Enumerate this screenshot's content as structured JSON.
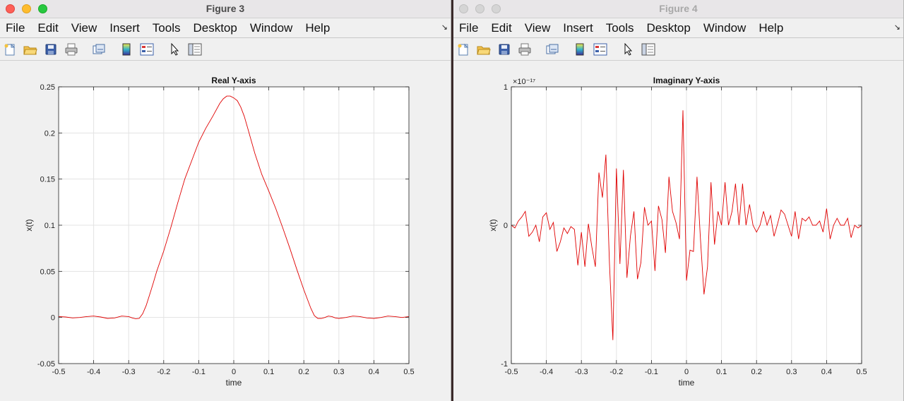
{
  "menu": [
    "File",
    "Edit",
    "View",
    "Insert",
    "Tools",
    "Desktop",
    "Window",
    "Help"
  ],
  "toolbar_icons": [
    "new-figure-icon",
    "open-file-icon",
    "save-icon",
    "print-icon",
    "link-axes-icon",
    "colorbar-icon",
    "legend-icon",
    "pointer-icon",
    "property-inspector-icon"
  ],
  "colors": {
    "line": "#e00000",
    "grid": "#e3e3e3",
    "axes_bg": "#ffffff",
    "window_bg": "#f0f0f0"
  },
  "windows": [
    {
      "title": "Figure 3",
      "active": true,
      "chart_data": {
        "type": "line",
        "title": "Real Y-axis",
        "xlabel": "time",
        "ylabel": "x(t)",
        "xlim": [
          -0.5,
          0.5
        ],
        "ylim": [
          -0.05,
          0.25
        ],
        "xticks": [
          "-0.5",
          "-0.4",
          "-0.3",
          "-0.2",
          "-0.1",
          "0",
          "0.1",
          "0.2",
          "0.3",
          "0.4",
          "0.5"
        ],
        "yticks": [
          "-0.05",
          "0",
          "0.05",
          "0.1",
          "0.15",
          "0.2",
          "0.25"
        ],
        "exponent": "",
        "grid": true,
        "series": [
          {
            "x": [
              -0.5,
              -0.48,
              -0.46,
              -0.44,
              -0.42,
              -0.4,
              -0.38,
              -0.36,
              -0.34,
              -0.32,
              -0.3,
              -0.29,
              -0.28,
              -0.27,
              -0.26,
              -0.25,
              -0.24,
              -0.23,
              -0.22,
              -0.2,
              -0.18,
              -0.16,
              -0.14,
              -0.12,
              -0.1,
              -0.08,
              -0.06,
              -0.04,
              -0.03,
              -0.02,
              -0.01,
              0,
              0.01,
              0.02,
              0.03,
              0.04,
              0.06,
              0.08,
              0.1,
              0.12,
              0.14,
              0.16,
              0.18,
              0.2,
              0.22,
              0.23,
              0.24,
              0.25,
              0.26,
              0.27,
              0.28,
              0.29,
              0.3,
              0.32,
              0.34,
              0.36,
              0.38,
              0.4,
              0.42,
              0.44,
              0.46,
              0.48,
              0.5
            ],
            "y": [
              0.001,
              0.0005,
              -0.0005,
              0,
              0.001,
              0.0015,
              0.0005,
              -0.001,
              -0.0005,
              0.0015,
              0.001,
              -0.0005,
              -0.0015,
              -0.001,
              0.004,
              0.013,
              0.025,
              0.037,
              0.05,
              0.072,
              0.097,
              0.124,
              0.15,
              0.17,
              0.19,
              0.205,
              0.218,
              0.232,
              0.237,
              0.24,
              0.24,
              0.238,
              0.235,
              0.228,
              0.218,
              0.205,
              0.178,
              0.155,
              0.137,
              0.118,
              0.097,
              0.075,
              0.052,
              0.03,
              0.01,
              0.002,
              -0.001,
              -0.001,
              0,
              0.0015,
              0.001,
              -0.0005,
              -0.001,
              0,
              0.0015,
              0.001,
              -0.0005,
              -0.001,
              0,
              0.0015,
              0.001,
              0,
              0.001
            ]
          }
        ]
      }
    },
    {
      "title": "Figure 4",
      "active": false,
      "chart_data": {
        "type": "line",
        "title": "Imaginary Y-axis",
        "xlabel": "time",
        "ylabel": "x(t)",
        "xlim": [
          -0.5,
          0.5
        ],
        "ylim": [
          -1,
          1
        ],
        "xticks": [
          "-0.5",
          "-0.4",
          "-0.3",
          "-0.2",
          "-0.1",
          "0",
          "0.1",
          "0.2",
          "0.3",
          "0.4",
          "0.5"
        ],
        "yticks": [
          "-1",
          "0",
          "1"
        ],
        "exponent": "×10⁻¹⁷",
        "grid": true,
        "series": [
          {
            "x": [
              -0.5,
              -0.49,
              -0.48,
              -0.47,
              -0.46,
              -0.45,
              -0.44,
              -0.43,
              -0.42,
              -0.41,
              -0.4,
              -0.39,
              -0.38,
              -0.37,
              -0.36,
              -0.35,
              -0.34,
              -0.33,
              -0.32,
              -0.31,
              -0.3,
              -0.29,
              -0.28,
              -0.27,
              -0.26,
              -0.25,
              -0.24,
              -0.23,
              -0.22,
              -0.21,
              -0.2,
              -0.19,
              -0.18,
              -0.17,
              -0.16,
              -0.15,
              -0.14,
              -0.13,
              -0.12,
              -0.11,
              -0.1,
              -0.09,
              -0.08,
              -0.07,
              -0.06,
              -0.05,
              -0.04,
              -0.03,
              -0.02,
              -0.01,
              0,
              0.01,
              0.02,
              0.03,
              0.04,
              0.05,
              0.06,
              0.07,
              0.08,
              0.09,
              0.1,
              0.11,
              0.12,
              0.13,
              0.14,
              0.15,
              0.16,
              0.17,
              0.18,
              0.19,
              0.2,
              0.21,
              0.22,
              0.23,
              0.24,
              0.25,
              0.26,
              0.27,
              0.28,
              0.29,
              0.3,
              0.31,
              0.32,
              0.33,
              0.34,
              0.35,
              0.36,
              0.37,
              0.38,
              0.39,
              0.4,
              0.41,
              0.42,
              0.43,
              0.44,
              0.45,
              0.46,
              0.47,
              0.48,
              0.49,
              0.5
            ],
            "y": [
              0.0,
              -0.02,
              0.03,
              0.06,
              0.1,
              -0.08,
              -0.05,
              0.0,
              -0.12,
              0.06,
              0.09,
              -0.03,
              0.02,
              -0.19,
              -0.12,
              -0.02,
              -0.06,
              -0.01,
              -0.03,
              -0.29,
              -0.05,
              -0.3,
              0.01,
              -0.16,
              -0.3,
              0.38,
              0.2,
              0.51,
              -0.27,
              -0.83,
              0.41,
              -0.28,
              0.4,
              -0.38,
              -0.08,
              0.1,
              -0.39,
              -0.27,
              0.13,
              0.0,
              0.03,
              -0.33,
              0.14,
              0.04,
              -0.2,
              0.35,
              0.1,
              0.02,
              -0.1,
              0.83,
              -0.4,
              -0.18,
              -0.19,
              0.35,
              -0.1,
              -0.5,
              -0.3,
              0.31,
              -0.14,
              0.1,
              0.0,
              0.31,
              0.0,
              0.1,
              0.3,
              0.0,
              0.3,
              0.0,
              0.15,
              0.0,
              -0.05,
              0.0,
              0.1,
              0.0,
              0.07,
              -0.08,
              0.01,
              0.11,
              0.08,
              0.0,
              -0.08,
              0.1,
              -0.1,
              0.05,
              0.03,
              0.06,
              0.0,
              0.0,
              0.03,
              -0.05,
              0.12,
              -0.1,
              0.0,
              0.05,
              0.0,
              0.0,
              0.05,
              -0.09,
              0.0,
              -0.02,
              0.0
            ]
          }
        ]
      }
    }
  ]
}
